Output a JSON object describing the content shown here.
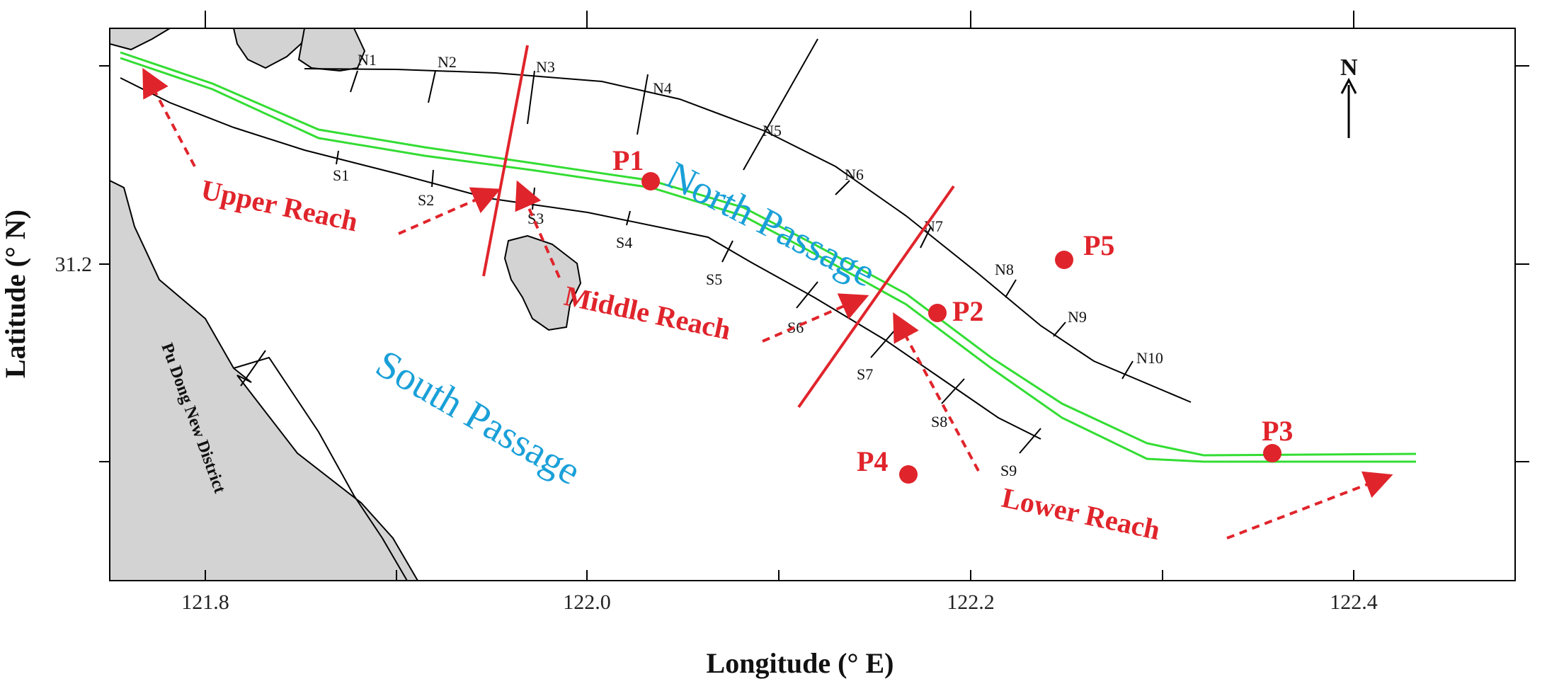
{
  "axes": {
    "xlabel": "Longitude (° E)",
    "ylabel": "Latitude (° N)",
    "x_ticks": [
      "121.8",
      "122.0",
      "122.2",
      "122.4"
    ],
    "y_ticks": [
      "31.2"
    ]
  },
  "labels": {
    "north_passage": "North Passage",
    "south_passage": "South Passage",
    "district": "Pu Dong New District",
    "north_arrow": "N"
  },
  "reaches": {
    "upper": "Upper Reach",
    "middle": "Middle Reach",
    "lower": "Lower Reach"
  },
  "points": [
    {
      "label": "P1",
      "lon": 122.03,
      "lat": 31.24
    },
    {
      "label": "P2",
      "lon": 122.18,
      "lat": 31.17
    },
    {
      "label": "P3",
      "lon": 122.36,
      "lat": 31.1
    },
    {
      "label": "P4",
      "lon": 122.17,
      "lat": 31.09
    },
    {
      "label": "P5",
      "lon": 122.25,
      "lat": 31.2
    }
  ],
  "transects": {
    "north": [
      "N1",
      "N2",
      "N3",
      "N4",
      "N5",
      "N6",
      "N7",
      "N8",
      "N9",
      "N10"
    ],
    "south": [
      "S1",
      "S2",
      "S3",
      "S4",
      "S5",
      "S6",
      "S7",
      "S8",
      "S9"
    ]
  },
  "colors": {
    "red": "#e0242b",
    "channel": "#33dd33",
    "land": "#d3d3d3",
    "passage_text": "#1aa0d8"
  }
}
